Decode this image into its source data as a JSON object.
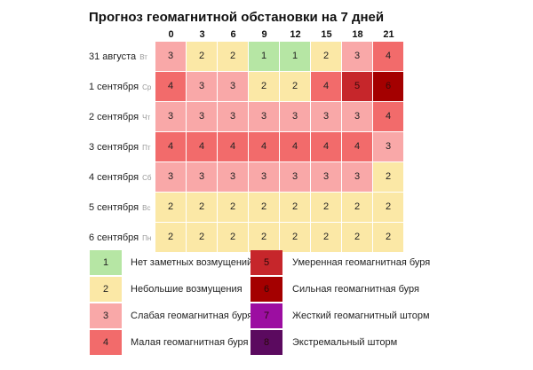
{
  "title": "Прогноз геомагнитной обстановки на 7 дней",
  "hours": [
    "0",
    "3",
    "6",
    "9",
    "12",
    "15",
    "18",
    "21"
  ],
  "level_colors": {
    "1": "#b6e6a4",
    "2": "#fbe8a6",
    "3": "#f9a8a8",
    "4": "#f26b6b",
    "5": "#c6262b",
    "6": "#a40000",
    "7": "#9c0ea1",
    "8": "#5b0a5f"
  },
  "days": [
    {
      "date": "31 августа",
      "dow": "Вт",
      "values": [
        3,
        2,
        2,
        1,
        1,
        2,
        3,
        4
      ]
    },
    {
      "date": "1 сентября",
      "dow": "Ср",
      "values": [
        4,
        3,
        3,
        2,
        2,
        4,
        5,
        6
      ]
    },
    {
      "date": "2 сентября",
      "dow": "Чт",
      "values": [
        3,
        3,
        3,
        3,
        3,
        3,
        3,
        4
      ]
    },
    {
      "date": "3 сентября",
      "dow": "Пт",
      "values": [
        4,
        4,
        4,
        4,
        4,
        4,
        4,
        3
      ]
    },
    {
      "date": "4 сентября",
      "dow": "Сб",
      "values": [
        3,
        3,
        3,
        3,
        3,
        3,
        3,
        2
      ]
    },
    {
      "date": "5 сентября",
      "dow": "Вс",
      "values": [
        2,
        2,
        2,
        2,
        2,
        2,
        2,
        2
      ]
    },
    {
      "date": "6 сентября",
      "dow": "Пн",
      "values": [
        2,
        2,
        2,
        2,
        2,
        2,
        2,
        2
      ]
    }
  ],
  "legend": [
    {
      "level": "1",
      "label": "Нет заметных возмущений"
    },
    {
      "level": "2",
      "label": "Небольшие возмущения"
    },
    {
      "level": "3",
      "label": "Слабая геомагнитная буря"
    },
    {
      "level": "4",
      "label": "Малая геомагнитная буря"
    },
    {
      "level": "5",
      "label": "Умеренная геомагнитная буря"
    },
    {
      "level": "6",
      "label": "Сильная геомагнитная буря"
    },
    {
      "level": "7",
      "label": "Жесткий геомагнитный шторм"
    },
    {
      "level": "8",
      "label": "Экстремальный шторм"
    }
  ]
}
